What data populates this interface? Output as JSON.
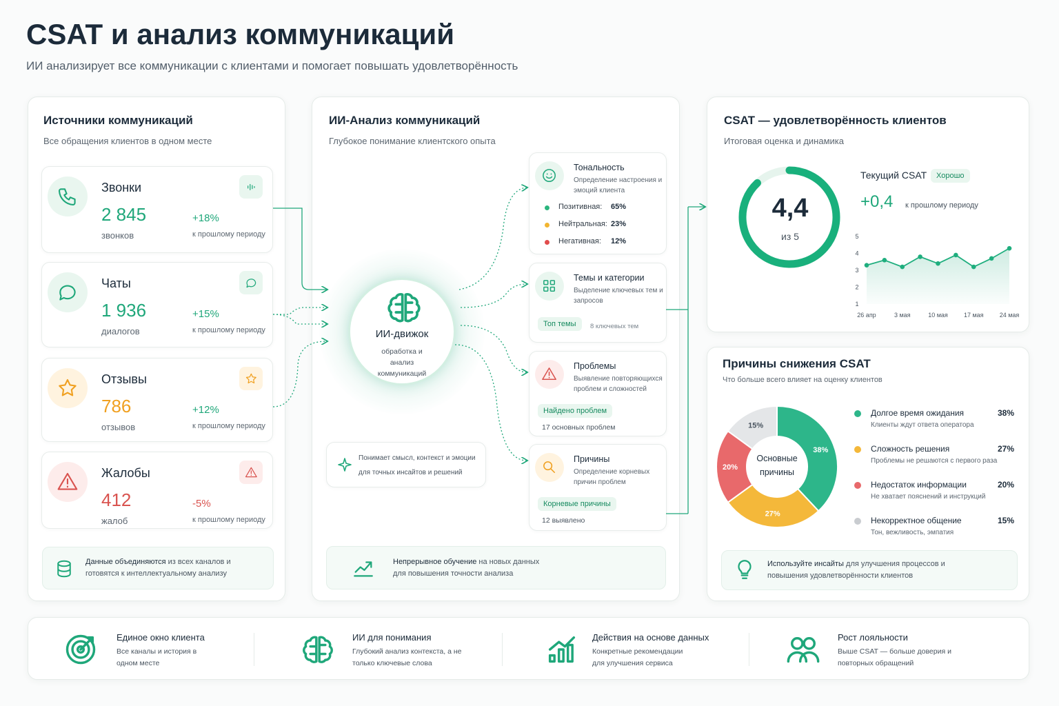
{
  "header": {
    "title": "CSAT и анализ коммуникаций",
    "subtitle": "ИИ анализирует все коммуникации с клиентами и помогает повышать удовлетворённость"
  },
  "sources": {
    "title": "Источники коммуникаций",
    "subtitle": "Все обращения клиентов в одном месте",
    "items": [
      {
        "name": "Звонки",
        "value": "2 845",
        "unit": "звонков",
        "change": "+18%",
        "change_note": "к прошлому периоду"
      },
      {
        "name": "Чаты",
        "value": "1 936",
        "unit": "диалогов",
        "change": "+15%",
        "change_note": "к прошлому периоду"
      },
      {
        "name": "Отзывы",
        "value": "786",
        "unit": "отзывов",
        "change": "+12%",
        "change_note": "к прошлому периоду"
      },
      {
        "name": "Жалобы",
        "value": "412",
        "unit": "жалоб",
        "change": "-5%",
        "change_note": "к прошлому периоду"
      }
    ],
    "footer": {
      "strong": "Данные объединяются",
      "text": "из всех каналов и готовятся к интеллектуальному анализу"
    }
  },
  "analysis": {
    "title": "ИИ-Анализ коммуникаций",
    "subtitle": "Глубокое понимание клиентского опыта",
    "engine": {
      "title": "ИИ-движок",
      "text": "обработка и анализ коммуникаций"
    },
    "cards": [
      {
        "title": "Тональность",
        "text": "Определение настроения и эмоций клиента",
        "sentiment": [
          {
            "label": "Позитивная:",
            "value": "65%"
          },
          {
            "label": "Нейтральная:",
            "value": "23%"
          },
          {
            "label": "Негативная:",
            "value": "12%"
          }
        ]
      },
      {
        "title": "Темы и категории",
        "text": "Выделение ключевых тем и запросов",
        "tag": "Топ темы",
        "note": "8 ключевых тем"
      },
      {
        "title": "Проблемы",
        "text": "Выявление повторяющихся проблем и сложностей",
        "tag": "Найдено проблем",
        "note": "17 основных проблем"
      },
      {
        "title": "Причины",
        "text": "Определение корневых причин проблем",
        "tag": "Корневые причины",
        "note": "12 выявлено"
      }
    ],
    "note": "Понимает смысл, контекст и эмоции для точных инсайтов и решений",
    "footer": {
      "strong": "Непрерывное обучение",
      "text": "на новых данных для повышения точности анализа"
    }
  },
  "csat": {
    "title": "CSAT — удовлетворённость клиентов",
    "subtitle": "Итоговая оценка и динамика",
    "gauge": {
      "value": 4.4,
      "label": "4,4",
      "max": 5,
      "max_label": "из 5"
    },
    "current_label": "Текущий CSAT",
    "badge": "Хорошо",
    "delta": "+0,4",
    "delta_note": "к прошлому периоду",
    "trend": {
      "type": "line",
      "color": "#1fae7e",
      "categories": [
        "26 апр",
        null,
        "3 мая",
        null,
        "10 мая",
        null,
        "17 мая",
        null,
        "24 мая"
      ],
      "values": [
        3.3,
        3.6,
        3.2,
        3.8,
        3.4,
        3.9,
        3.2,
        3.7,
        4.3
      ],
      "ylim": [
        1,
        5
      ],
      "yticks": [
        1,
        2,
        3,
        4,
        5
      ]
    }
  },
  "reasons": {
    "type": "donut",
    "title": "Причины снижения CSAT",
    "subtitle": "Что больше всего влияет на оценку клиентов",
    "center_label": "Основные причины",
    "items": [
      {
        "name": "Долгое время ожидания",
        "desc": "Клиенты ждут ответа оператора",
        "value": 38,
        "value_label": "38%",
        "color": "#2db68a"
      },
      {
        "name": "Сложность решения",
        "desc": "Проблемы не решаются с первого раза",
        "value": 27,
        "value_label": "27%",
        "color": "#f4b83a"
      },
      {
        "name": "Недостаток информации",
        "desc": "Не хватает пояснений и инструкций",
        "value": 20,
        "value_label": "20%",
        "color": "#e8696b"
      },
      {
        "name": "Некорректное общение",
        "desc": "Тон, вежливость, эмпатия",
        "value": 15,
        "value_label": "15%",
        "color": "#e4e6e8"
      }
    ],
    "footer": {
      "strong": "Используйте инсайты",
      "text": "для улучшения процессов и повышения удовлетворённости клиентов"
    }
  },
  "features": {
    "items": [
      {
        "title": "Единое окно клиента",
        "text": "Все каналы и история в одном месте"
      },
      {
        "title": "ИИ для понимания",
        "text": "Глубокий анализ контекста, а не только ключевые слова"
      },
      {
        "title": "Действия на основе данных",
        "text": "Конкретные рекомендации для улучшения сервиса"
      },
      {
        "title": "Рост лояльности",
        "text": "Выше CSAT — больше доверия и повторных обращений"
      }
    ]
  }
}
